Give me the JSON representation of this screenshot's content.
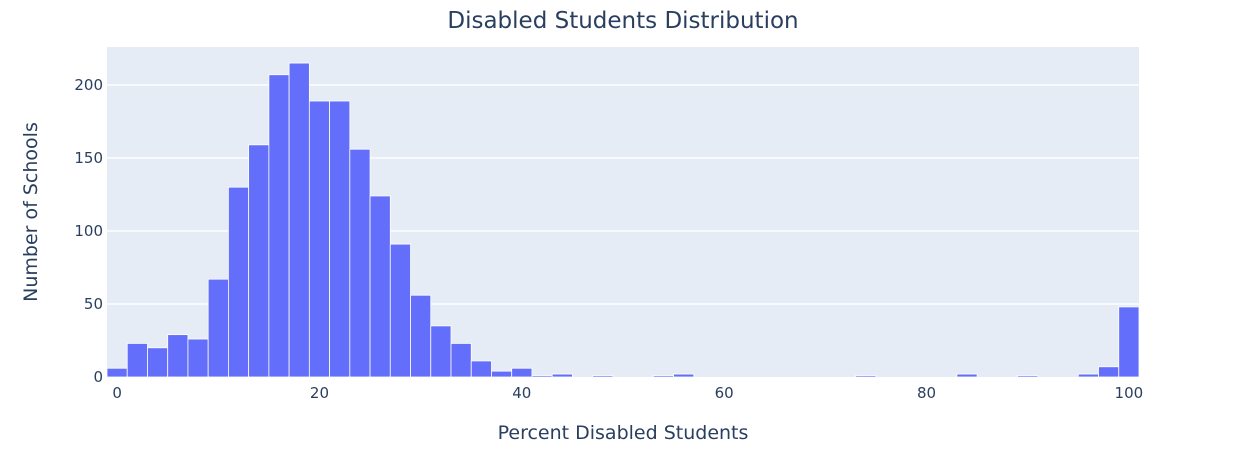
{
  "chart_data": {
    "type": "bar",
    "title": "Disabled Students Distribution",
    "xlabel": "Percent Disabled Students",
    "ylabel": "Number of Schools",
    "xlim": [
      -1,
      101
    ],
    "ylim": [
      0,
      226
    ],
    "bin_width": 2,
    "bin_starts": [
      -1,
      1,
      3,
      5,
      7,
      9,
      11,
      13,
      15,
      17,
      19,
      21,
      23,
      25,
      27,
      29,
      31,
      33,
      35,
      37,
      39,
      41,
      43,
      45,
      47,
      49,
      51,
      53,
      55,
      57,
      59,
      61,
      63,
      65,
      67,
      69,
      71,
      73,
      75,
      77,
      79,
      81,
      83,
      85,
      87,
      89,
      91,
      93,
      95,
      97,
      99
    ],
    "values": [
      6,
      23,
      20,
      29,
      26,
      67,
      130,
      159,
      207,
      215,
      189,
      189,
      156,
      124,
      91,
      56,
      35,
      23,
      11,
      4,
      6,
      1,
      2,
      0,
      1,
      0,
      0,
      1,
      2,
      0,
      0,
      0,
      0,
      0,
      0,
      0,
      0,
      1,
      0,
      0,
      0,
      0,
      2,
      0,
      0,
      1,
      0,
      0,
      2,
      7,
      48
    ],
    "x_ticks": [
      0,
      20,
      40,
      60,
      80,
      100
    ],
    "y_ticks": [
      0,
      50,
      100,
      150,
      200
    ],
    "grid": true,
    "colors": {
      "bar": "#636efa",
      "plot_bg": "#e5ecf6",
      "text": "#2a3f5f"
    }
  }
}
